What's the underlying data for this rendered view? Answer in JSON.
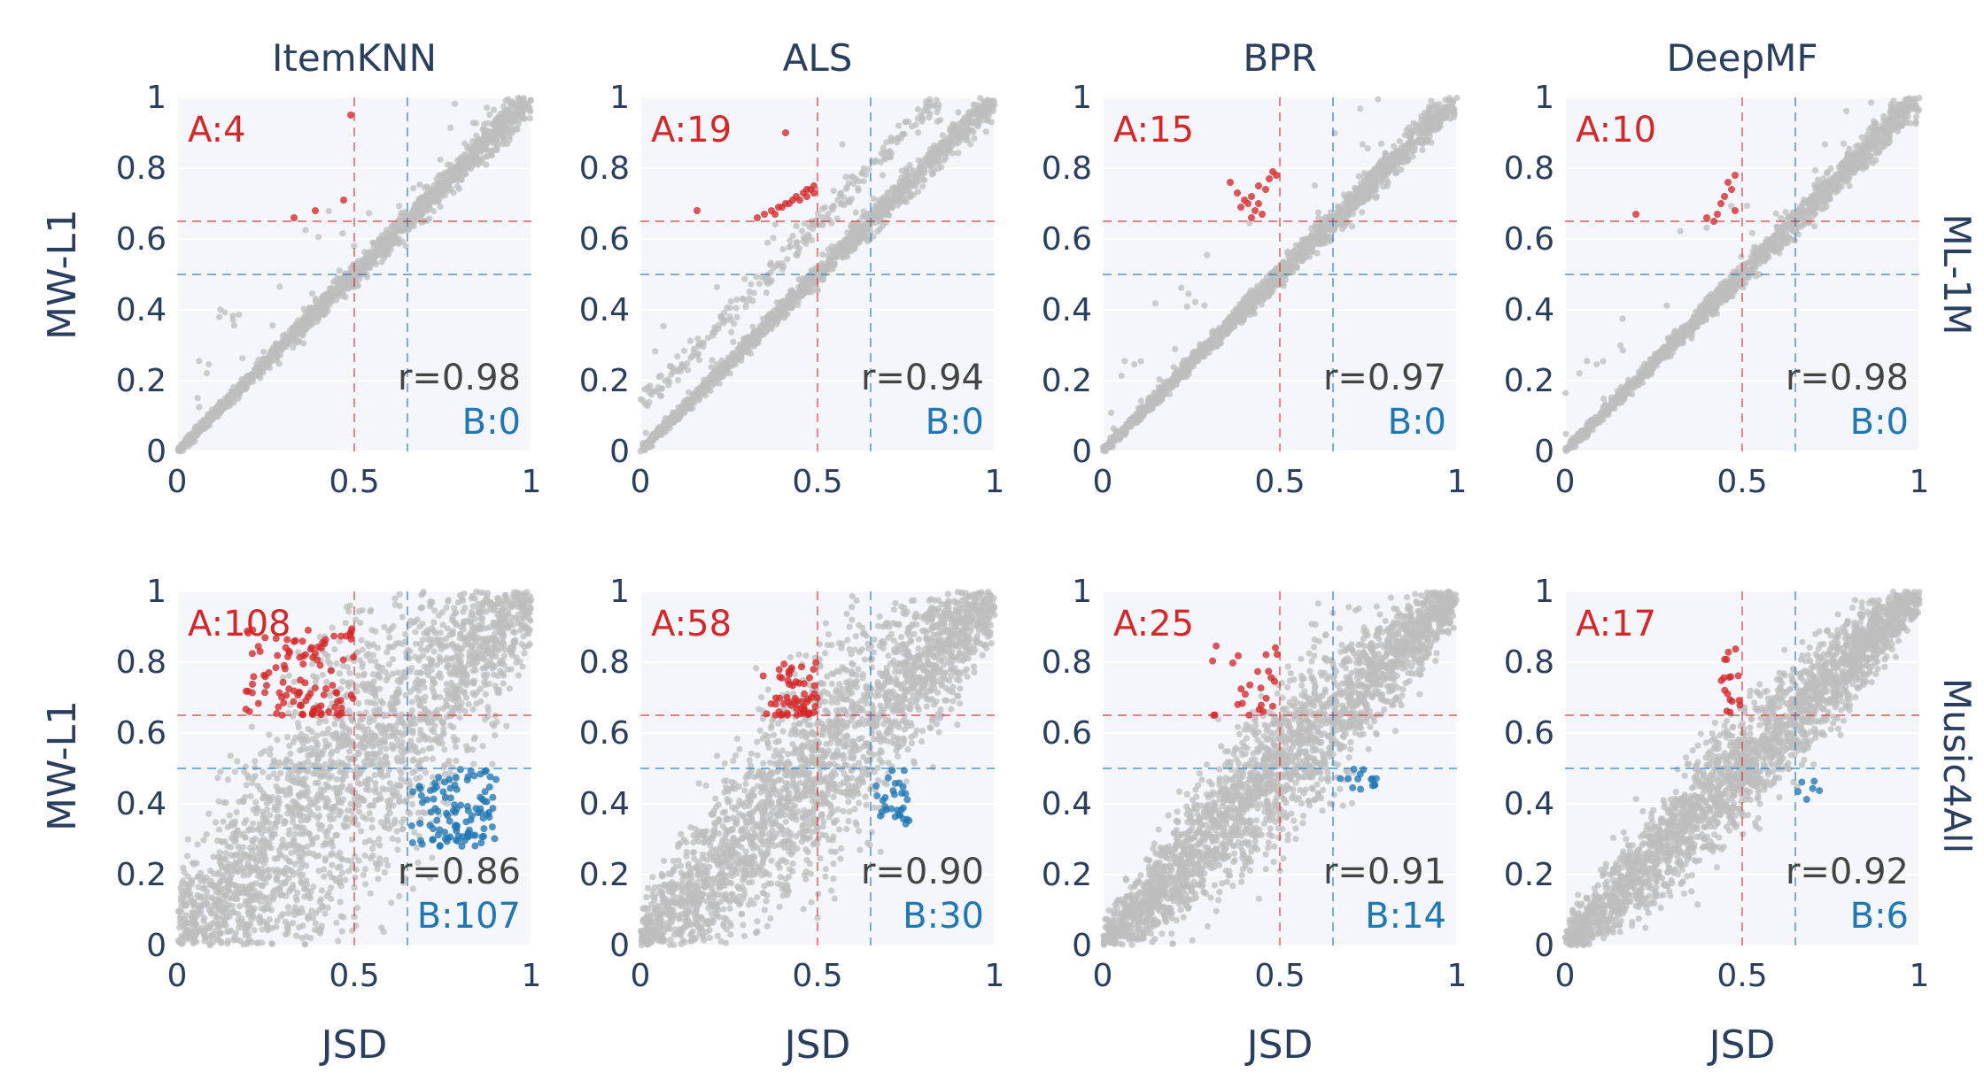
{
  "figure": {
    "col_titles": [
      "ItemKNN",
      "ALS",
      "BPR",
      "DeepMF"
    ],
    "row_titles": [
      "ML-1M",
      "Music4All"
    ],
    "ylabel": "MW-L1",
    "xlabel": "JSD",
    "x_ticks": [
      "0",
      "0.5",
      "1"
    ],
    "y_ticks": [
      "0",
      "0.2",
      "0.4",
      "0.6",
      "0.8",
      "1"
    ]
  },
  "colors": {
    "plot_bg": "#f4f6fb",
    "grid": "#ffffff",
    "gray_points": "#bdbdbd",
    "region_a": "#d62728",
    "region_b": "#1f77b4",
    "text": "#2a3f5f"
  },
  "chart_data": [
    {
      "type": "scatter",
      "dataset": "ML-1M",
      "model": "ItemKNN",
      "a_label": "A:4",
      "r_label": "r=0.98",
      "b_label": "B:0",
      "a_count": 4,
      "b_count": 0,
      "r": 0.98,
      "threshold_red": {
        "x": 0.5,
        "y": 0.65
      },
      "threshold_blue": {
        "x": 0.65,
        "y": 0.5
      },
      "xlim": [
        0,
        1
      ],
      "ylim": [
        0,
        1
      ],
      "red_points": [
        [
          0.49,
          0.95
        ],
        [
          0.47,
          0.71
        ],
        [
          0.39,
          0.68
        ],
        [
          0.33,
          0.66
        ]
      ],
      "blue_points": []
    },
    {
      "type": "scatter",
      "dataset": "ML-1M",
      "model": "ALS",
      "a_label": "A:19",
      "r_label": "r=0.94",
      "b_label": "B:0",
      "a_count": 19,
      "b_count": 0,
      "r": 0.94,
      "threshold_red": {
        "x": 0.5,
        "y": 0.65
      },
      "threshold_blue": {
        "x": 0.65,
        "y": 0.5
      },
      "xlim": [
        0,
        1
      ],
      "ylim": [
        0,
        1
      ],
      "red_points": [
        [
          0.41,
          0.9
        ],
        [
          0.16,
          0.68
        ],
        [
          0.33,
          0.66
        ],
        [
          0.35,
          0.67
        ],
        [
          0.37,
          0.68
        ],
        [
          0.38,
          0.67
        ],
        [
          0.4,
          0.69
        ],
        [
          0.41,
          0.7
        ],
        [
          0.42,
          0.7
        ],
        [
          0.43,
          0.71
        ],
        [
          0.44,
          0.72
        ],
        [
          0.45,
          0.71
        ],
        [
          0.46,
          0.73
        ],
        [
          0.47,
          0.72
        ],
        [
          0.48,
          0.74
        ],
        [
          0.49,
          0.73
        ],
        [
          0.49,
          0.75
        ],
        [
          0.47,
          0.74
        ],
        [
          0.39,
          0.69
        ]
      ],
      "blue_points": []
    },
    {
      "type": "scatter",
      "dataset": "ML-1M",
      "model": "BPR",
      "a_label": "A:15",
      "r_label": "r=0.97",
      "b_label": "B:0",
      "a_count": 15,
      "b_count": 0,
      "r": 0.97,
      "threshold_red": {
        "x": 0.5,
        "y": 0.65
      },
      "threshold_blue": {
        "x": 0.65,
        "y": 0.5
      },
      "xlim": [
        0,
        1
      ],
      "ylim": [
        0,
        1
      ],
      "red_points": [
        [
          0.36,
          0.76
        ],
        [
          0.38,
          0.73
        ],
        [
          0.4,
          0.71
        ],
        [
          0.41,
          0.7
        ],
        [
          0.42,
          0.72
        ],
        [
          0.43,
          0.68
        ],
        [
          0.44,
          0.7
        ],
        [
          0.45,
          0.67
        ],
        [
          0.42,
          0.66
        ],
        [
          0.39,
          0.69
        ],
        [
          0.47,
          0.77
        ],
        [
          0.48,
          0.79
        ],
        [
          0.49,
          0.78
        ],
        [
          0.46,
          0.74
        ],
        [
          0.44,
          0.75
        ]
      ],
      "blue_points": []
    },
    {
      "type": "scatter",
      "dataset": "ML-1M",
      "model": "DeepMF",
      "a_label": "A:10",
      "r_label": "r=0.98",
      "b_label": "B:0",
      "a_count": 10,
      "b_count": 0,
      "r": 0.98,
      "threshold_red": {
        "x": 0.5,
        "y": 0.65
      },
      "threshold_blue": {
        "x": 0.65,
        "y": 0.5
      },
      "xlim": [
        0,
        1
      ],
      "ylim": [
        0,
        1
      ],
      "red_points": [
        [
          0.2,
          0.67
        ],
        [
          0.4,
          0.66
        ],
        [
          0.43,
          0.67
        ],
        [
          0.44,
          0.7
        ],
        [
          0.45,
          0.72
        ],
        [
          0.46,
          0.76
        ],
        [
          0.47,
          0.74
        ],
        [
          0.48,
          0.78
        ],
        [
          0.48,
          0.68
        ],
        [
          0.42,
          0.65
        ]
      ],
      "blue_points": []
    },
    {
      "type": "scatter",
      "dataset": "Music4All",
      "model": "ItemKNN",
      "a_label": "A:108",
      "r_label": "r=0.86",
      "b_label": "B:107",
      "a_count": 108,
      "b_count": 107,
      "r": 0.86,
      "threshold_red": {
        "x": 0.5,
        "y": 0.65
      },
      "threshold_blue": {
        "x": 0.65,
        "y": 0.5
      },
      "xlim": [
        0,
        1
      ],
      "ylim": [
        0,
        1
      ],
      "red_region": {
        "x": [
          0.17,
          0.5
        ],
        "y": [
          0.65,
          0.9
        ],
        "count": 108
      },
      "blue_region": {
        "x": [
          0.65,
          0.9
        ],
        "y": [
          0.28,
          0.5
        ],
        "count": 107
      }
    },
    {
      "type": "scatter",
      "dataset": "Music4All",
      "model": "ALS",
      "a_label": "A:58",
      "r_label": "r=0.90",
      "b_label": "B:30",
      "a_count": 58,
      "b_count": 30,
      "r": 0.9,
      "threshold_red": {
        "x": 0.5,
        "y": 0.65
      },
      "threshold_blue": {
        "x": 0.65,
        "y": 0.5
      },
      "xlim": [
        0,
        1
      ],
      "ylim": [
        0,
        1
      ],
      "red_region": {
        "x": [
          0.34,
          0.5
        ],
        "y": [
          0.65,
          0.8
        ],
        "count": 58
      },
      "blue_region": {
        "x": [
          0.66,
          0.76
        ],
        "y": [
          0.34,
          0.5
        ],
        "count": 30
      }
    },
    {
      "type": "scatter",
      "dataset": "Music4All",
      "model": "BPR",
      "a_label": "A:25",
      "r_label": "r=0.91",
      "b_label": "B:14",
      "a_count": 25,
      "b_count": 14,
      "r": 0.91,
      "threshold_red": {
        "x": 0.5,
        "y": 0.65
      },
      "threshold_blue": {
        "x": 0.65,
        "y": 0.5
      },
      "xlim": [
        0,
        1
      ],
      "ylim": [
        0,
        1
      ],
      "red_region": {
        "x": [
          0.3,
          0.5
        ],
        "y": [
          0.65,
          0.87
        ],
        "count": 25
      },
      "blue_region": {
        "x": [
          0.65,
          0.78
        ],
        "y": [
          0.44,
          0.5
        ],
        "count": 14
      }
    },
    {
      "type": "scatter",
      "dataset": "Music4All",
      "model": "DeepMF",
      "a_label": "A:17",
      "r_label": "r=0.92",
      "b_label": "B:6",
      "a_count": 17,
      "b_count": 6,
      "r": 0.92,
      "threshold_red": {
        "x": 0.5,
        "y": 0.65
      },
      "threshold_blue": {
        "x": 0.65,
        "y": 0.5
      },
      "xlim": [
        0,
        1
      ],
      "ylim": [
        0,
        1
      ],
      "red_region": {
        "x": [
          0.44,
          0.5
        ],
        "y": [
          0.65,
          0.84
        ],
        "count": 17
      },
      "blue_region": {
        "x": [
          0.65,
          0.72
        ],
        "y": [
          0.41,
          0.5
        ],
        "count": 6
      }
    }
  ]
}
